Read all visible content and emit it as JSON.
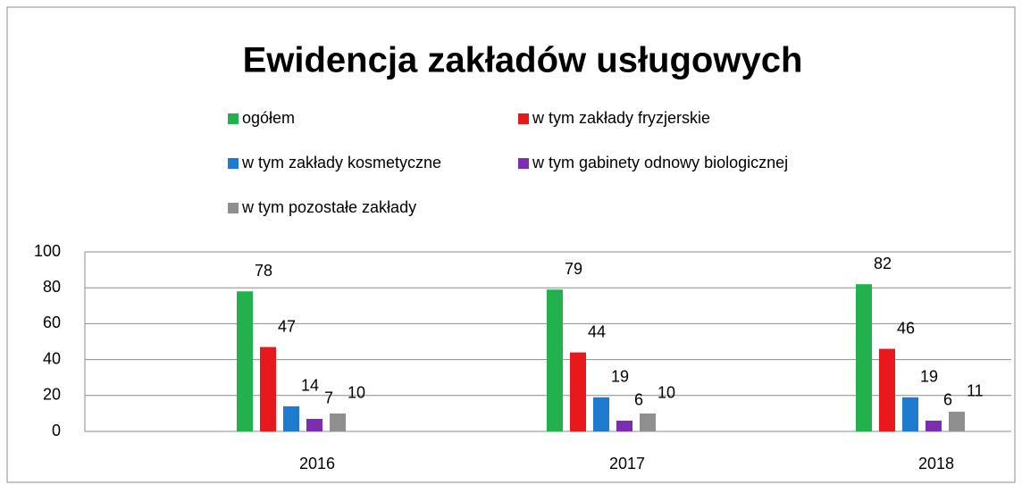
{
  "chart_data": {
    "type": "bar",
    "title": "Ewidencja zakładów usługowych",
    "categories": [
      "2016",
      "2017",
      "2018"
    ],
    "series": [
      {
        "name": "ogółem",
        "color": "#22b14c",
        "values": [
          78,
          79,
          82
        ]
      },
      {
        "name": "w tym zakłady fryzjerskie",
        "color": "#e8191d",
        "values": [
          47,
          44,
          46
        ]
      },
      {
        "name": "w tym zakłady kosmetyczne",
        "color": "#1f7bd0",
        "values": [
          14,
          19,
          19
        ]
      },
      {
        "name": "w tym gabinety odnowy biologicznej",
        "color": "#7b2fb0",
        "values": [
          7,
          6,
          6
        ]
      },
      {
        "name": "w tym pozostałe zakłady",
        "color": "#8f8f8f",
        "values": [
          10,
          10,
          11
        ]
      }
    ],
    "ylim": [
      0,
      100
    ],
    "yticks": [
      0,
      20,
      40,
      60,
      80,
      100
    ],
    "grid": true,
    "legend": "top"
  }
}
